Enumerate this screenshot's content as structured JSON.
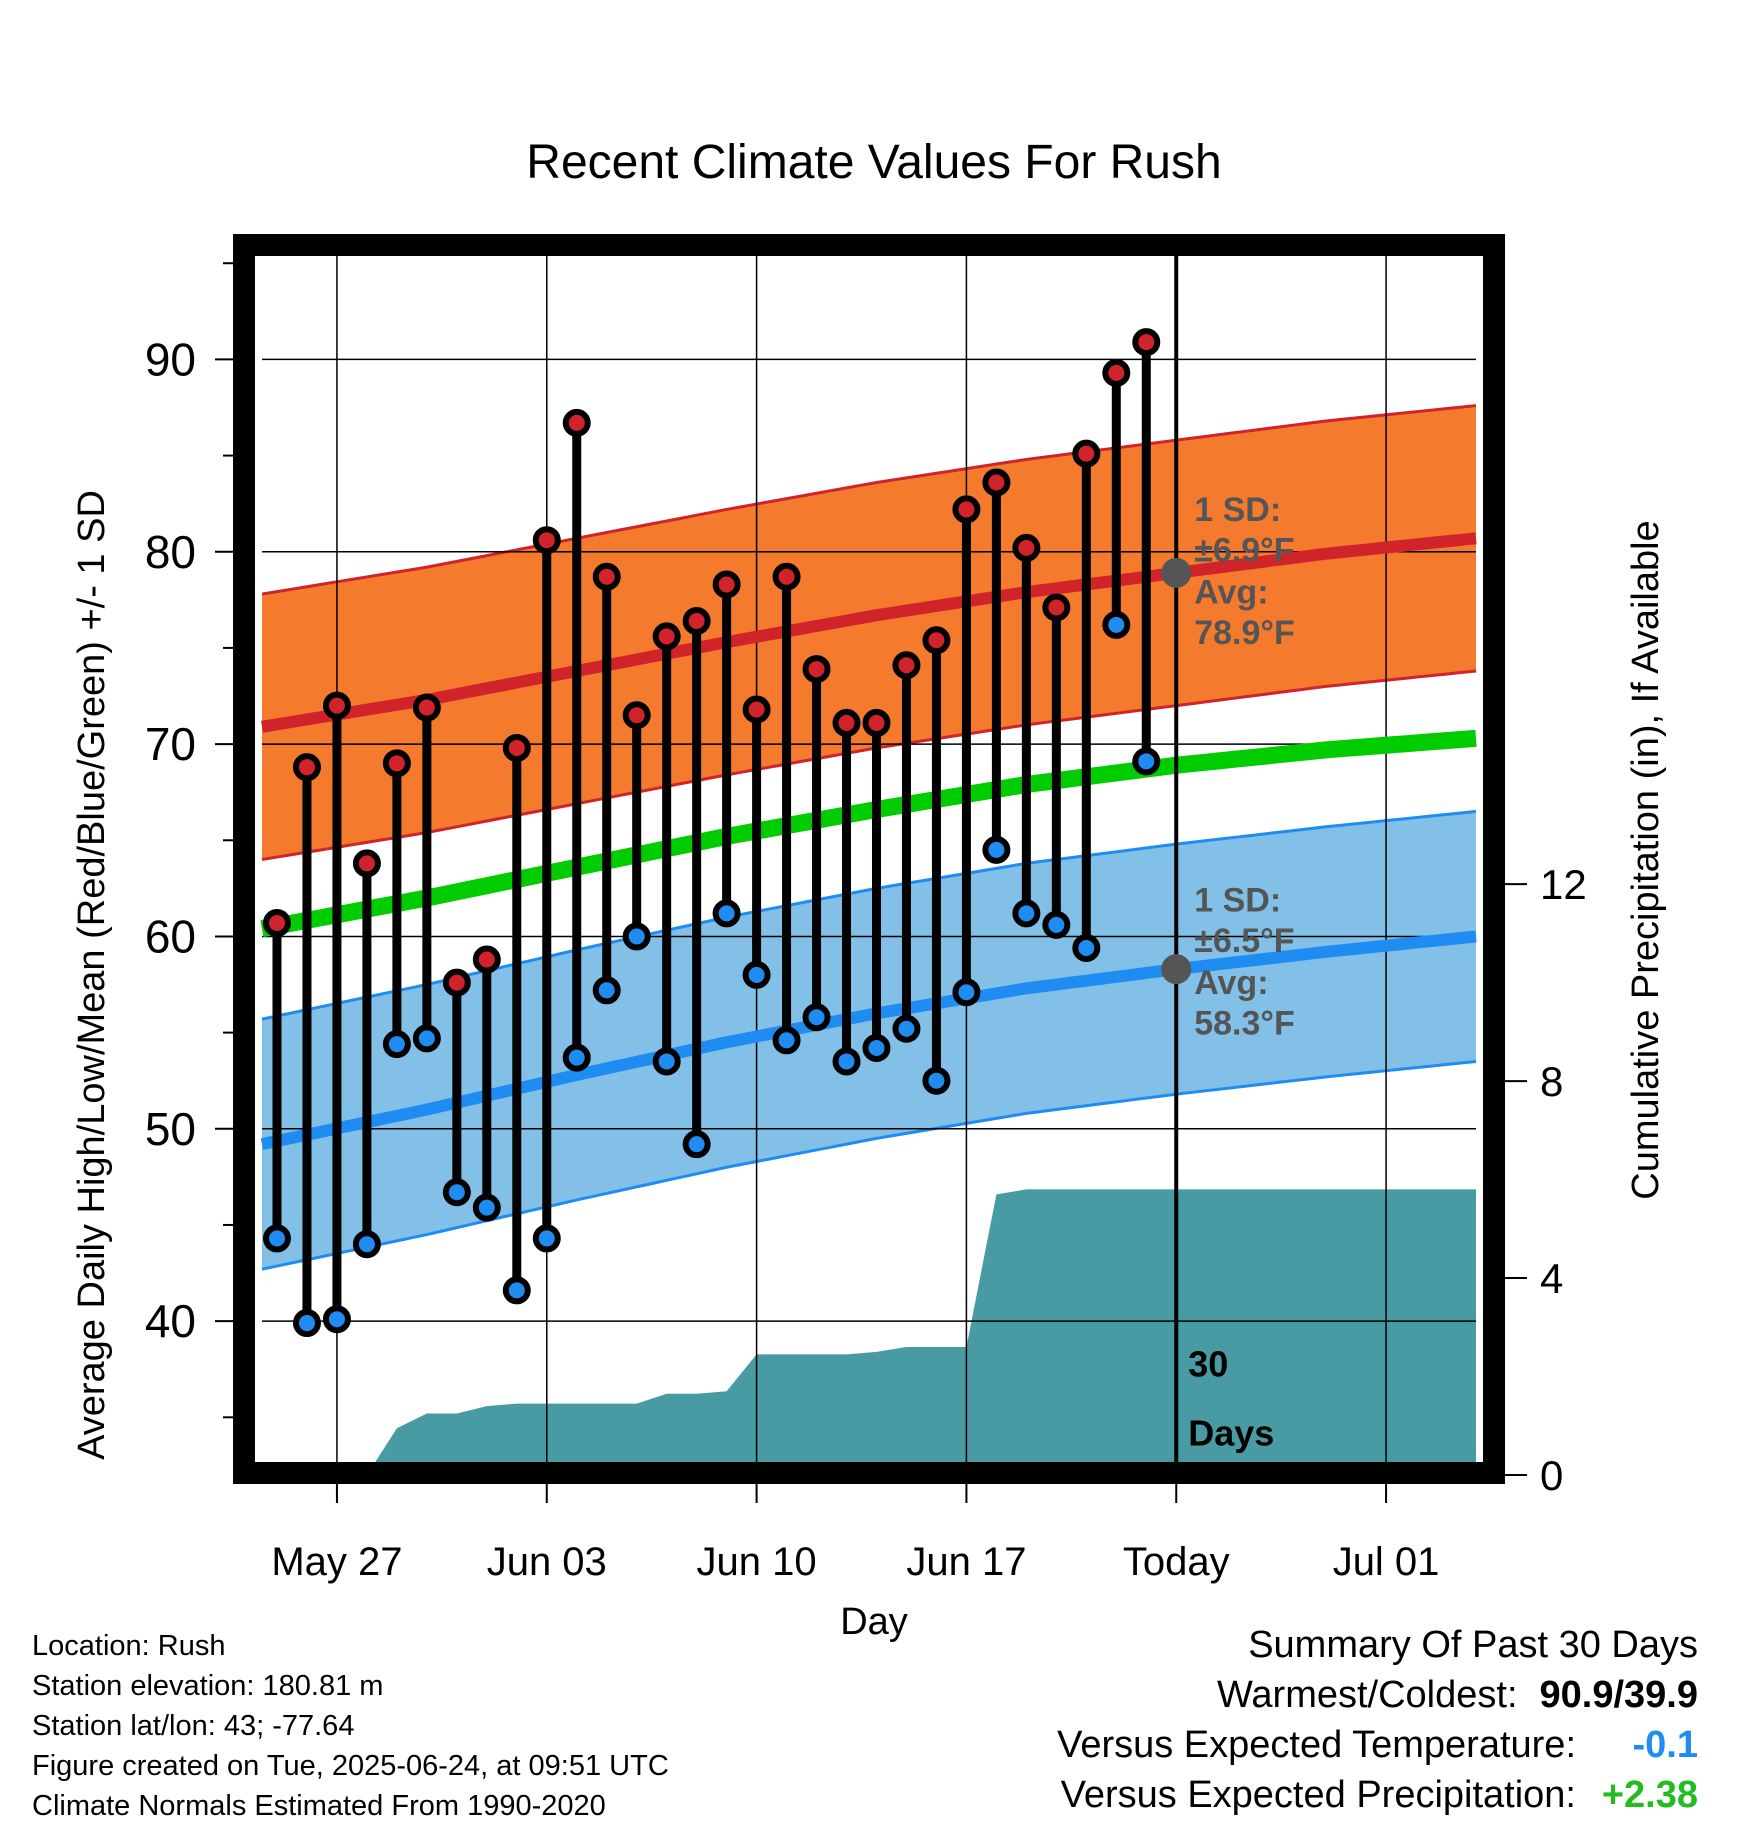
{
  "chart_data": {
    "type": "line",
    "title": "Recent Climate Values For Rush",
    "xlabel": "Day",
    "ylabel": "Average Daily High/Low/Mean (Red/Blue/Green) +/- 1 SD",
    "y2label": "Cumulative Precipitation (in), If Available",
    "x_ticks": [
      "May 27",
      "Jun 03",
      "Jun 10",
      "Jun 17",
      "Today",
      "Jul 01"
    ],
    "y_ticks": [
      "40",
      "50",
      "60",
      "70",
      "80",
      "90"
    ],
    "y2_ticks": [
      "0",
      "4",
      "8",
      "12"
    ],
    "ylim": [
      32,
      96
    ],
    "y2lim": [
      0,
      25
    ],
    "x_day_range": [
      -30.5,
      10
    ],
    "grid": true,
    "colors": {
      "high_band": "#f47a2e",
      "high_line": "#d0232a",
      "low_band": "#82c0e8",
      "low_line": "#1e8cf0",
      "mean_line": "#00cc00",
      "precip": "#489ba3",
      "stick": "#000000",
      "high_dot": "#d0232a",
      "low_dot": "#1e8cf0",
      "today_dot": "#555555"
    },
    "normals": {
      "days": [
        -30.5,
        -25,
        -20,
        -15,
        -10,
        -5,
        0,
        5,
        10
      ],
      "avg_high": [
        70.9,
        72.3,
        73.8,
        75.3,
        76.7,
        77.9,
        78.9,
        79.9,
        80.7
      ],
      "high_sd": 6.9,
      "avg_low": [
        49.2,
        51.0,
        52.8,
        54.5,
        56.0,
        57.3,
        58.3,
        59.2,
        60.0
      ],
      "low_sd": 6.5,
      "avg_mean": [
        60.4,
        62.0,
        63.6,
        65.2,
        66.6,
        67.9,
        68.9,
        69.7,
        70.3
      ]
    },
    "daily": {
      "days": [
        -30,
        -29,
        -28,
        -27,
        -26,
        -25,
        -24,
        -23,
        -22,
        -21,
        -20,
        -19,
        -18,
        -17,
        -16,
        -15,
        -14,
        -13,
        -12,
        -11,
        -10,
        -9,
        -8,
        -7,
        -6,
        -5,
        -4,
        -3,
        -2,
        -1
      ],
      "high": [
        60.7,
        68.8,
        72.0,
        63.8,
        69.0,
        71.9,
        57.6,
        58.8,
        69.8,
        80.6,
        86.7,
        78.7,
        71.5,
        75.6,
        76.4,
        78.3,
        71.8,
        78.7,
        73.9,
        71.1,
        71.1,
        74.1,
        75.4,
        82.2,
        83.6,
        80.2,
        77.1,
        85.1,
        89.3,
        90.9
      ],
      "low": [
        44.3,
        39.9,
        40.1,
        44.0,
        54.4,
        54.7,
        46.7,
        45.9,
        41.6,
        44.3,
        53.7,
        57.2,
        60.0,
        53.5,
        49.2,
        61.2,
        58.0,
        54.6,
        55.8,
        53.5,
        54.2,
        55.2,
        52.5,
        57.1,
        64.5,
        61.2,
        60.6,
        59.4,
        76.2,
        69.1
      ]
    },
    "precip_cumulative": {
      "days": [
        -27,
        -26,
        -25,
        -24,
        -23,
        -22,
        -21,
        -20,
        -19,
        -18,
        -17,
        -16,
        -15,
        -14,
        -13,
        -12,
        -11,
        -10,
        -9,
        -8,
        -7,
        -6,
        -5,
        -4,
        -3,
        -2,
        -1,
        0,
        10
      ],
      "values": [
        0,
        0.95,
        1.25,
        1.25,
        1.4,
        1.45,
        1.45,
        1.45,
        1.45,
        1.45,
        1.65,
        1.65,
        1.7,
        2.45,
        2.45,
        2.45,
        2.45,
        2.5,
        2.6,
        2.6,
        2.6,
        5.7,
        5.8,
        5.8,
        5.8,
        5.8,
        5.8,
        5.8,
        5.8
      ]
    },
    "annotations": {
      "high_sd_label": "1 SD:",
      "high_sd_value": "±6.9°F",
      "high_avg_label": "Avg:",
      "high_avg_value": "78.9°F",
      "low_sd_label": "1 SD:",
      "low_sd_value": "±6.5°F",
      "low_avg_label": "Avg:",
      "low_avg_value": "58.3°F",
      "days_label_1": "30",
      "days_label_2": "Days"
    }
  },
  "meta": {
    "location": "Location: Rush",
    "elevation": "Station elevation: 180.81 m",
    "latlon": "Station lat/lon: 43; -77.64",
    "created": "Figure created on Tue, 2025-06-24, at 09:51 UTC",
    "normals": "Climate Normals Estimated From 1990-2020"
  },
  "summary": {
    "title": "Summary Of Past 30 Days",
    "warm_cold_label": "Warmest/Coldest:",
    "warm_cold_value": "90.9/39.9",
    "temp_label": "Versus Expected Temperature:",
    "temp_value": "-0.1",
    "temp_color": "#1e8cf0",
    "precip_label": "Versus Expected Precipitation:",
    "precip_value": "+2.38",
    "precip_color": "#22bb22"
  }
}
